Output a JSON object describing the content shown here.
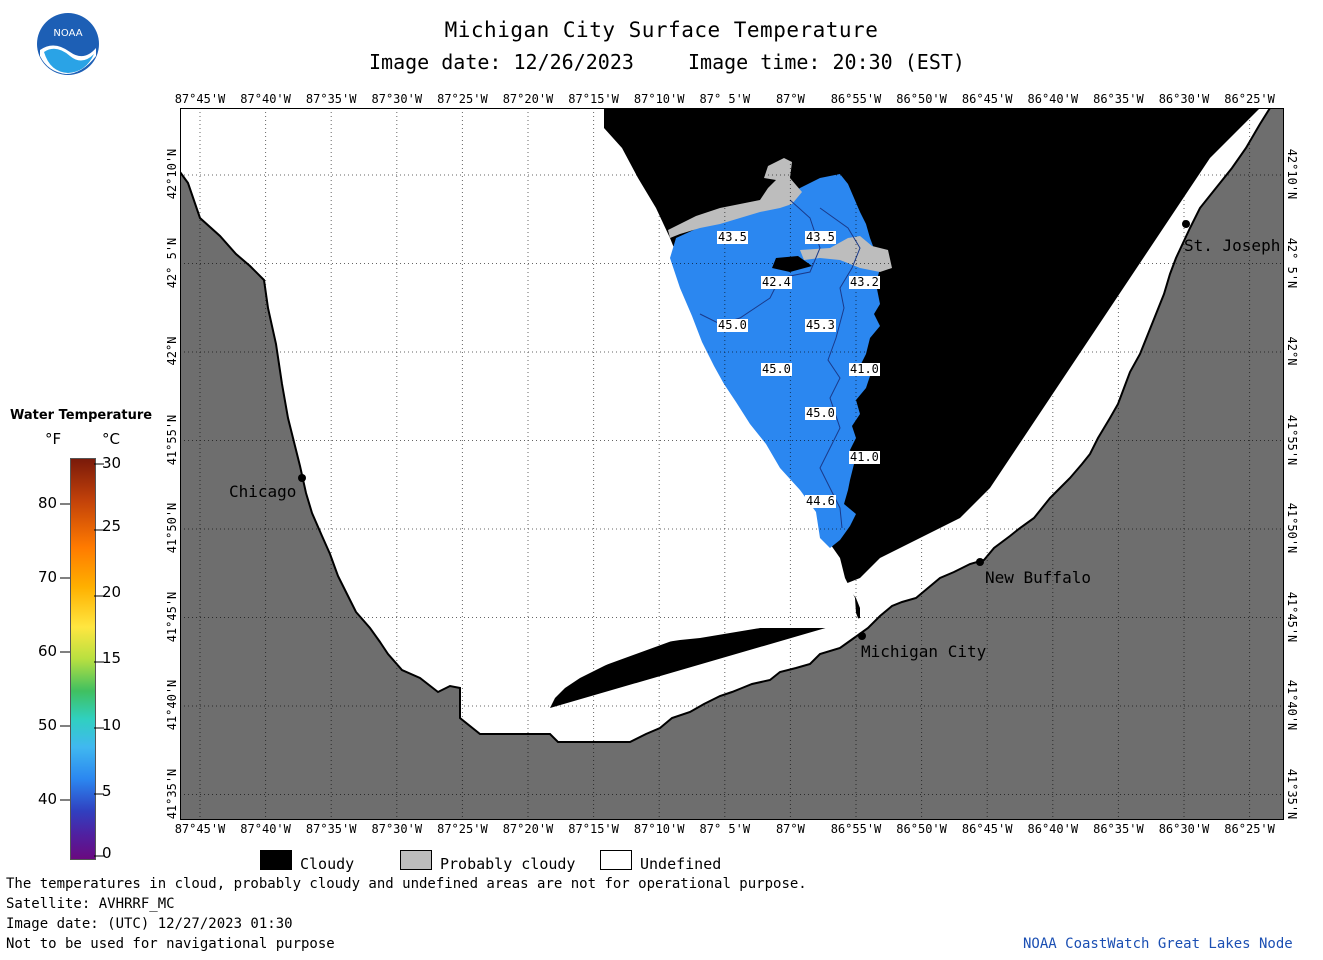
{
  "header": {
    "title": "Michigan City Surface Temperature",
    "image_date": "Image date: 12/26/2023",
    "image_time": "Image time: 20:30 (EST)",
    "logo_text": "NOAA"
  },
  "map": {
    "lon_labels": [
      "87°45'W",
      "87°40'W",
      "87°35'W",
      "87°30'W",
      "87°25'W",
      "87°20'W",
      "87°15'W",
      "87°10'W",
      "87° 5'W",
      "87°W",
      "86°55'W",
      "86°50'W",
      "86°45'W",
      "86°40'W",
      "86°35'W",
      "86°30'W",
      "86°25'W"
    ],
    "lat_labels": [
      "42°10'N",
      "42° 5'N",
      "42°N",
      "41°55'N",
      "41°50'N",
      "41°45'N",
      "41°40'N",
      "41°35'N"
    ],
    "cities": {
      "chicago": "Chicago",
      "st_joseph": "St. Joseph",
      "new_buffalo": "New Buffalo",
      "michigan_city": "Michigan City"
    },
    "temperature_labels": [
      "43.5",
      "43.5",
      "42.4",
      "43.2",
      "45.0",
      "45.3",
      "45.0",
      "41.0",
      "45.0",
      "41.0",
      "44.6"
    ],
    "colors": {
      "land": "#6e6e6e",
      "cloudy": "#000000",
      "probably_cloudy": "#bdbdbd",
      "undefined": "#ffffff",
      "water": "#2b87f0"
    }
  },
  "legend": {
    "title": "Water Temperature",
    "unit_f": "°F",
    "unit_c": "°C",
    "f_ticks": [
      "80",
      "70",
      "60",
      "50",
      "40"
    ],
    "c_ticks": [
      "30",
      "25",
      "20",
      "15",
      "10",
      "5",
      "0"
    ]
  },
  "key": {
    "cloudy": "Cloudy",
    "probably_cloudy": "Probably cloudy",
    "undefined": "Undefined"
  },
  "footer": {
    "disclaimer": "The temperatures in cloud, probably cloudy and undefined areas are not for operational purpose.",
    "satellite": "Satellite: AVHRRF_MC",
    "utc_date": "Image date: (UTC) 12/27/2023  01:30",
    "nav_warning": "Not to be used for navigational purpose",
    "credit": "NOAA CoastWatch Great Lakes Node"
  }
}
